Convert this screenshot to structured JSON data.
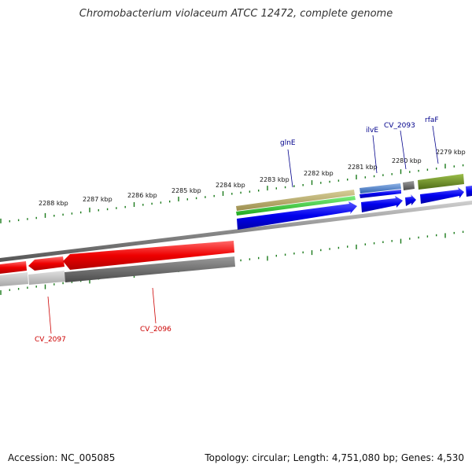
{
  "title": "Chromobacterium violaceum ATCC 12472, complete genome",
  "footer": {
    "accession": "Accession: NC_005085",
    "summary": "Topology: circular; Length: 4,751,080 bp; Genes: 4,530"
  },
  "colors": {
    "tick": "#1a7a1a",
    "backbone": "#8a8a8a",
    "forward_cds": "#0000e6",
    "reverse_cds": "#e60000",
    "rna_gold": "#b5a86a",
    "gene_green": "#2ec82e",
    "steel_blue": "#4a7fc8",
    "olive": "#6b8e23",
    "dark_gray": "#666666",
    "light_gray": "#bbbbbb",
    "forward_label": "#00008b",
    "reverse_label": "#cc0000"
  },
  "ruler_labels": [
    "2279 kbp",
    "2280 kbp",
    "2281 kbp",
    "2282 kbp",
    "2283 kbp",
    "2284 kbp",
    "2285 kbp",
    "2286 kbp",
    "2287 kbp",
    "2288 kbp"
  ],
  "forward_gene_labels": [
    "glnE",
    "ilvE",
    "CV_2093",
    "rfaF"
  ],
  "reverse_gene_labels": [
    "CV_2097",
    "CV_2096"
  ]
}
